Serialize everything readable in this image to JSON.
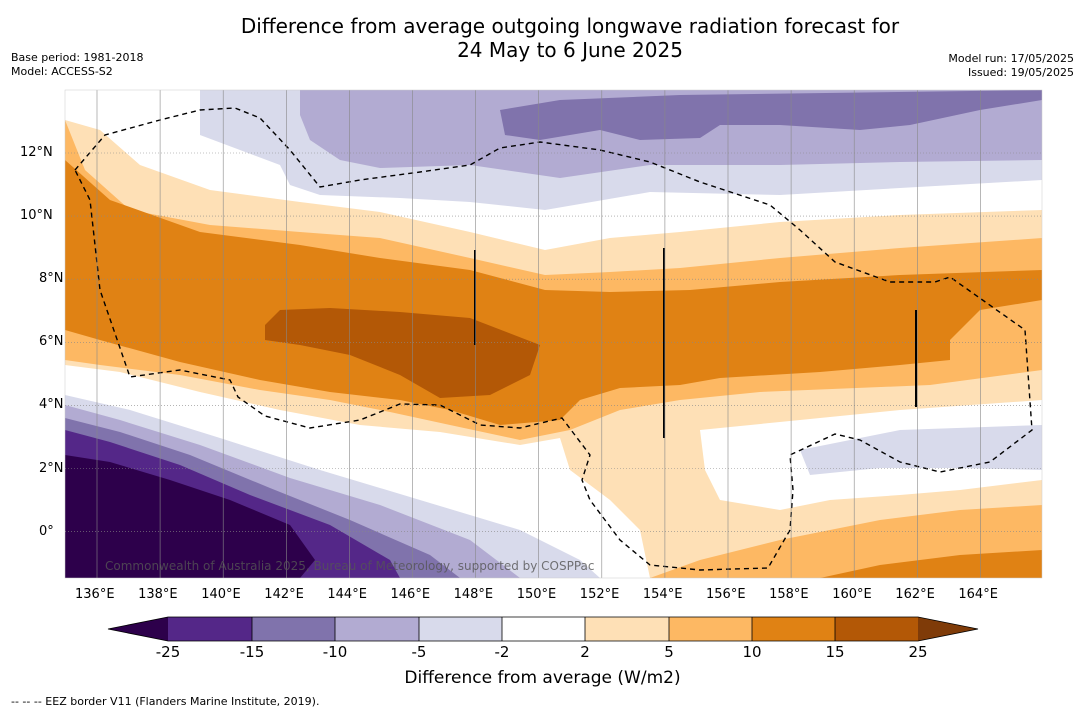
{
  "title_line1": "Difference from average outgoing longwave radiation forecast for",
  "title_line2": "24 May to 6 June 2025",
  "base_period": "Base period: 1981-2018",
  "model": "Model: ACCESS-S2",
  "model_run": "Model run: 17/05/2025",
  "issued": "Issued: 19/05/2025",
  "watermark": "Commonwealth of Australia 2025, Bureau of Meteorology, supported by COSPPac",
  "lon_labels": [
    "136°E",
    "138°E",
    "140°E",
    "142°E",
    "144°E",
    "146°E",
    "148°E",
    "150°E",
    "152°E",
    "154°E",
    "156°E",
    "158°E",
    "160°E",
    "162°E",
    "164°E"
  ],
  "lat_labels": [
    "12°N",
    "10°N",
    "8°N",
    "6°N",
    "4°N",
    "2°N",
    "0°"
  ],
  "colorbar": {
    "title": "Difference from average (W/m2)",
    "ticks": [
      "-25",
      "-15",
      "-10",
      "-5",
      "-2",
      "2",
      "5",
      "10",
      "15",
      "25"
    ],
    "colors": {
      "below_min": "#2d004b",
      "neg_25_15": "#542788",
      "neg_15_10": "#8073ac",
      "neg_10_5": "#b2abd2",
      "neg_5_2": "#d8daeb",
      "neutral": "#ffffff",
      "pos_2_5": "#fee0b6",
      "pos_5_10": "#fdb863",
      "pos_10_15": "#e08214",
      "pos_15_25": "#b35806",
      "above_max": "#7f3b08"
    }
  },
  "footer": "--  --  -- EEZ border V11 (Flanders Marine Institute, 2019)."
}
